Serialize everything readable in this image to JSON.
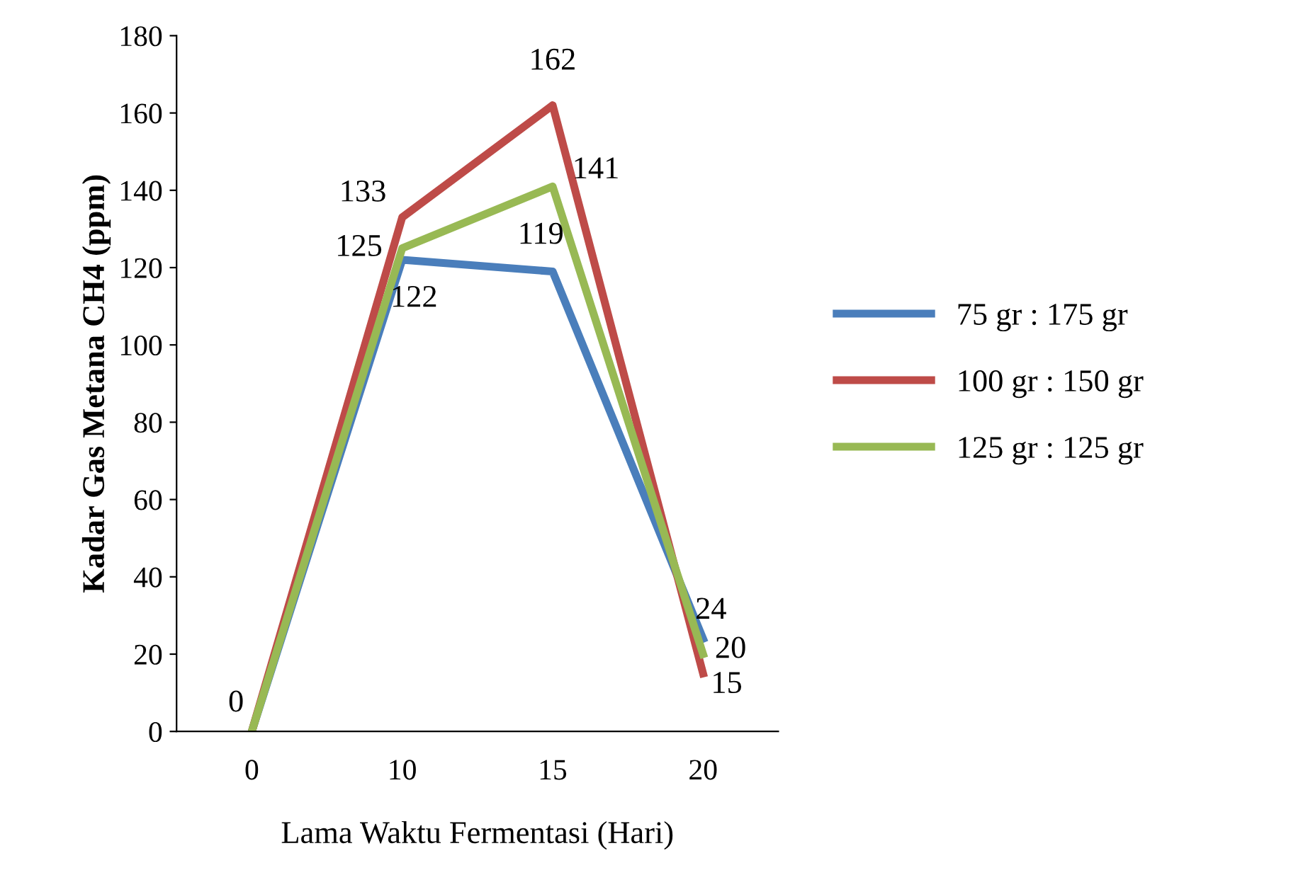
{
  "chart_data": {
    "type": "line",
    "xlabel": "Lama Waktu Fermentasi (Hari)",
    "ylabel": "Kadar Gas Metana CH4 (ppm)",
    "categories": [
      "0",
      "10",
      "15",
      "20"
    ],
    "series": [
      {
        "name": "75 gr : 175 gr",
        "color": "#4a7ebb",
        "values": [
          0,
          122,
          119,
          24
        ],
        "value_labels": [
          "0",
          "122",
          "119",
          "24"
        ]
      },
      {
        "name": "100 gr : 150 gr",
        "color": "#be4b48",
        "values": [
          0,
          133,
          162,
          15
        ],
        "value_labels": [
          null,
          "133",
          "162",
          "15"
        ]
      },
      {
        "name": "125 gr : 125 gr",
        "color": "#98b954",
        "values": [
          0,
          125,
          141,
          20
        ],
        "value_labels": [
          null,
          "125",
          "141",
          "20"
        ]
      }
    ],
    "ylim": [
      0,
      180
    ],
    "yticks": [
      0,
      20,
      40,
      60,
      80,
      100,
      120,
      140,
      160,
      180
    ],
    "legend": "right",
    "grid": false,
    "marker": "none",
    "line_style": "solid"
  }
}
